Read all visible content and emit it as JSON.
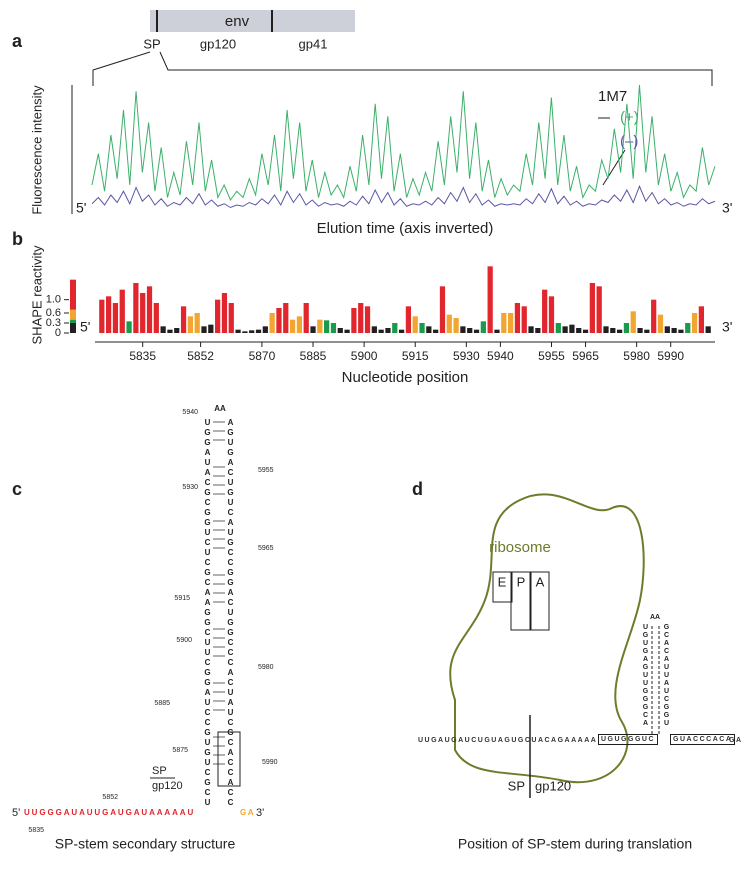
{
  "panel_labels": [
    "a",
    "b",
    "c",
    "d"
  ],
  "gene_map": {
    "title": "env",
    "segments": [
      "SP",
      "gp120",
      "gp41"
    ]
  },
  "chart_data": [
    {
      "type": "line",
      "ylabel": "Fluorescence intensity",
      "xlabel": "Elution time (axis inverted)",
      "end_labels": [
        "5'",
        "3'"
      ],
      "annotation": "1M7",
      "ylim": [
        0,
        100
      ],
      "series": [
        {
          "name": "(+)",
          "color": "#3cb06a",
          "values": [
            20,
            45,
            15,
            60,
            25,
            80,
            20,
            95,
            30,
            70,
            15,
            50,
            10,
            30,
            12,
            55,
            20,
            70,
            15,
            40,
            10,
            20,
            8,
            15,
            10,
            25,
            12,
            45,
            20,
            60,
            15,
            80,
            25,
            70,
            15,
            40,
            10,
            30,
            12,
            20,
            10,
            35,
            15,
            60,
            20,
            85,
            25,
            75,
            15,
            45,
            10,
            25,
            12,
            30,
            15,
            55,
            20,
            75,
            30,
            95,
            25,
            70,
            15,
            40,
            10,
            25,
            12,
            20,
            15,
            45,
            20,
            70,
            25,
            90,
            20,
            60,
            15,
            35,
            10,
            20,
            15,
            40,
            25,
            65,
            30,
            85,
            25,
            100,
            30,
            75,
            20,
            45,
            15,
            30,
            10,
            20,
            15,
            50,
            20,
            35
          ]
        },
        {
          "name": "(–)",
          "color": "#5b57a6",
          "values": [
            5,
            10,
            4,
            12,
            6,
            15,
            5,
            18,
            7,
            12,
            4,
            9,
            3,
            6,
            4,
            10,
            5,
            13,
            4,
            8,
            3,
            5,
            2,
            4,
            3,
            6,
            4,
            9,
            5,
            12,
            4,
            15,
            6,
            13,
            4,
            8,
            3,
            6,
            4,
            5,
            3,
            7,
            4,
            11,
            5,
            16,
            6,
            14,
            4,
            9,
            3,
            5,
            4,
            7,
            4,
            10,
            5,
            14,
            7,
            18,
            6,
            13,
            4,
            8,
            3,
            5,
            4,
            5,
            4,
            9,
            5,
            13,
            6,
            17,
            5,
            11,
            4,
            7,
            3,
            5,
            4,
            8,
            6,
            12,
            7,
            16,
            6,
            19,
            7,
            14,
            5,
            9,
            4,
            6,
            3,
            5,
            4,
            9,
            5,
            7
          ]
        }
      ]
    },
    {
      "type": "bar",
      "ylabel": "SHAPE reactivity",
      "xlabel": "Nucleotide position",
      "end_labels": [
        "5'",
        "3'"
      ],
      "x": [
        5823,
        5825,
        5827,
        5829,
        5831,
        5833,
        5835,
        5837,
        5839,
        5841,
        5843,
        5845,
        5847,
        5849,
        5851,
        5853,
        5855,
        5857,
        5859,
        5861,
        5863,
        5865,
        5867,
        5869,
        5871,
        5873,
        5875,
        5877,
        5879,
        5881,
        5883,
        5885,
        5887,
        5889,
        5891,
        5893,
        5895,
        5897,
        5899,
        5901,
        5903,
        5905,
        5907,
        5909,
        5911,
        5913,
        5915,
        5917,
        5919,
        5921,
        5923,
        5925,
        5927,
        5929,
        5931,
        5933,
        5935,
        5937,
        5939,
        5941,
        5943,
        5945,
        5947,
        5949,
        5951,
        5953,
        5955,
        5957,
        5959,
        5961,
        5963,
        5965,
        5967,
        5969,
        5971,
        5973,
        5975,
        5977,
        5979,
        5981,
        5983,
        5985,
        5987,
        5989,
        5991,
        5993,
        5995,
        5997,
        5999,
        6001
      ],
      "values": [
        1.0,
        1.1,
        0.9,
        1.3,
        0.35,
        1.5,
        1.2,
        1.4,
        0.9,
        0.2,
        0.1,
        0.15,
        0.8,
        0.5,
        0.6,
        0.2,
        0.25,
        1.0,
        1.2,
        0.9,
        0.1,
        0.05,
        0.08,
        0.1,
        0.2,
        0.6,
        0.75,
        0.9,
        0.4,
        0.5,
        0.9,
        0.2,
        0.4,
        0.38,
        0.3,
        0.15,
        0.1,
        0.75,
        0.9,
        0.8,
        0.2,
        0.1,
        0.15,
        0.3,
        0.1,
        0.8,
        0.5,
        0.3,
        0.2,
        0.1,
        1.4,
        0.55,
        0.45,
        0.2,
        0.15,
        0.1,
        0.35,
        2.0,
        0.1,
        0.6,
        0.6,
        0.9,
        0.8,
        0.2,
        0.15,
        1.3,
        1.1,
        0.3,
        0.2,
        0.25,
        0.15,
        0.1,
        1.5,
        1.4,
        0.2,
        0.15,
        0.1,
        0.3,
        0.65,
        0.15,
        0.1,
        1.0,
        0.55,
        0.2,
        0.15,
        0.1,
        0.3,
        0.6,
        0.8,
        0.2
      ],
      "xlim": [
        5821,
        6003
      ],
      "xticks": [
        5835,
        5852,
        5870,
        5885,
        5900,
        5915,
        5930,
        5940,
        5955,
        5965,
        5980,
        5990
      ],
      "ylim": [
        0,
        2.1
      ],
      "yticks": [
        0,
        0.3,
        0.6,
        {
          "value": 1,
          "label": "1.0"
        }
      ],
      "color_key": [
        {
          "from": 0,
          "to": 0.3,
          "color": "#231f20"
        },
        {
          "from": 0.3,
          "to": 0.4,
          "color": "#1a9a4a"
        },
        {
          "from": 0.4,
          "to": 0.7,
          "color": "#f2a531"
        },
        {
          "from": 0.7,
          "to": 1.6,
          "color": "#e1262d"
        }
      ]
    }
  ],
  "panel_c": {
    "positions": [
      "5940",
      "5955",
      "5930",
      "5965",
      "5915",
      "5900",
      "5980",
      "5885",
      "5875",
      "5990",
      "5852",
      "5835"
    ],
    "loop": "AA",
    "stem_left": "UGGAUACGCGGUCUCGCAAGGCUUCGGAUCCGUGUCGCU",
    "stem_right": "AGUGACUGUCAUGCCGGACUGGCCCACUAUCGCACCACC",
    "linear": "UUGGGAUAUUGAUGAUAAAAAU",
    "tail": "GA",
    "five_prime": "5'",
    "three_prime": "3'",
    "sp": "SP",
    "gp120": "gp120",
    "caption": "SP-stem secondary structure"
  },
  "panel_d": {
    "ribosome": "ribosome",
    "sites": [
      "E",
      "P",
      "A"
    ],
    "mrna": "UUGAUGAUCUGUAGUGCUACAGAAAAA",
    "boxed_left": "UGUGGGUC",
    "loop": "AA",
    "stem_left": "UGUGAGUUGGGCA",
    "stem_right": "GCACAUUAUCGGU",
    "boxed_right": "GUACCCACA",
    "tail": "GA",
    "sp": "SP",
    "gp120": "gp120",
    "caption": "Position of SP-stem during translation"
  }
}
